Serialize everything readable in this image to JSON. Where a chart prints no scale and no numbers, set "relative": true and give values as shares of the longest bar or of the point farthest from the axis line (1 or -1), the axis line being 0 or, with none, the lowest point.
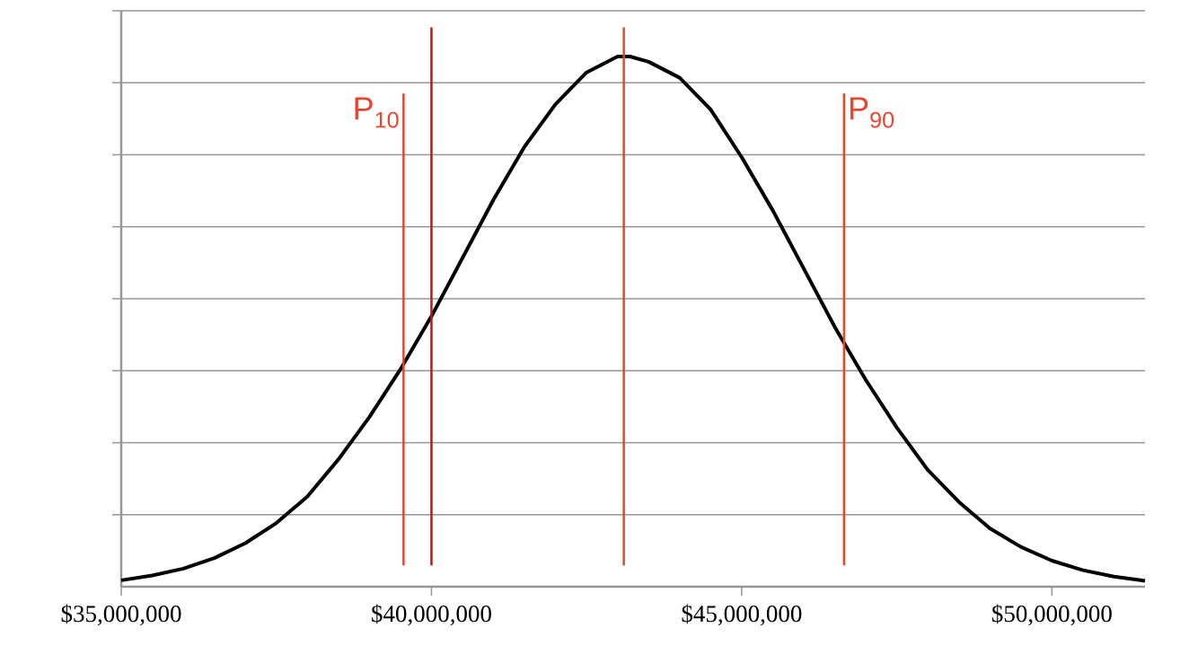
{
  "chart_data": {
    "type": "line",
    "relative": true,
    "grid": "y",
    "tick_labels": "x",
    "marker": "none",
    "line_style": "solid",
    "x": [
      35000000,
      35500000,
      36000000,
      36500000,
      37000000,
      37500000,
      38000000,
      38500000,
      39000000,
      39500000,
      40000000,
      40500000,
      41000000,
      41500000,
      42000000,
      42500000,
      43000000,
      43200000,
      43500000,
      44000000,
      44500000,
      45000000,
      45500000,
      46000000,
      46500000,
      47000000,
      47500000,
      48000000,
      48500000,
      49000000,
      49500000,
      50000000,
      50500000,
      51000000,
      51500000
    ],
    "series": [
      {
        "color": "#000000",
        "values": [
          0.012,
          0.021,
          0.034,
          0.054,
          0.082,
          0.12,
          0.17,
          0.24,
          0.32,
          0.41,
          0.51,
          0.62,
          0.73,
          0.83,
          0.91,
          0.97,
          1.0,
          1.0,
          0.99,
          0.96,
          0.9,
          0.81,
          0.71,
          0.6,
          0.49,
          0.39,
          0.3,
          0.22,
          0.16,
          0.11,
          0.075,
          0.049,
          0.031,
          0.019,
          0.011
        ]
      }
    ],
    "xlim": [
      35000000,
      51500000
    ],
    "xticks": [
      {
        "value": 35000000,
        "label": "$35,000,000"
      },
      {
        "value": 40000000,
        "label": "$40,000,000"
      },
      {
        "value": 45000000,
        "label": "$45,000,000"
      },
      {
        "value": 50000000,
        "label": "$50,000,000"
      }
    ],
    "ref_lines": [
      {
        "axis": "x",
        "value": 39550000,
        "label": "P$_{10}$",
        "color": "#e8452c"
      },
      {
        "axis": "x",
        "value": 40000000,
        "color": "#cc1111"
      },
      {
        "axis": "x",
        "value": 43100000,
        "color": "#e8452c"
      },
      {
        "axis": "x",
        "value": 46650000,
        "label": "P$_{90}$",
        "color": "#e8452c"
      }
    ]
  }
}
